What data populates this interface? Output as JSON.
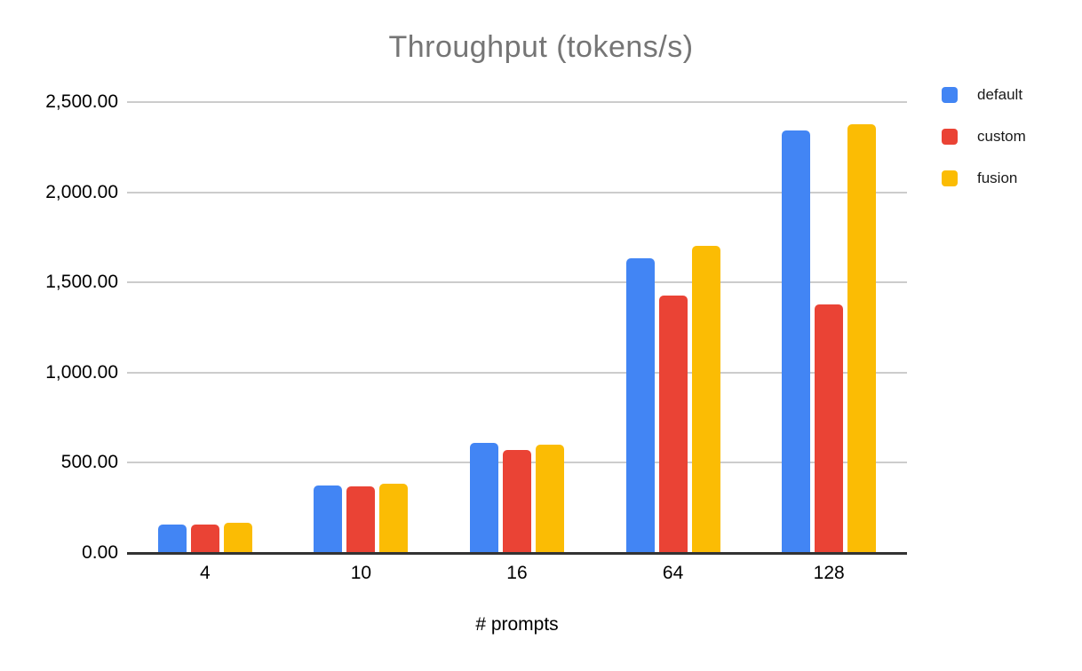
{
  "page": {
    "background": "#ffffff"
  },
  "chart_data": {
    "type": "bar",
    "title": "Throughput (tokens/s)",
    "xlabel": "# prompts",
    "ylabel": "",
    "categories": [
      "4",
      "10",
      "16",
      "64",
      "128"
    ],
    "series": [
      {
        "name": "default",
        "color": "#4285F4",
        "values": [
          158,
          372,
          610,
          1632,
          2345
        ]
      },
      {
        "name": "custom",
        "color": "#EA4335",
        "values": [
          156,
          370,
          572,
          1428,
          1376
        ]
      },
      {
        "name": "fusion",
        "color": "#FBBC04",
        "values": [
          168,
          386,
          601,
          1705,
          2376
        ]
      }
    ],
    "ylim": [
      0,
      2500
    ],
    "ytick_step": 500,
    "ytick_labels": [
      "0.00",
      "500.00",
      "1,000.00",
      "1,500.00",
      "2,000.00",
      "2,500.00"
    ],
    "grid": true,
    "legend_position": "top-right"
  },
  "colors": {
    "title_text": "#757575",
    "axis_text": "#000000",
    "legend_text": "#1a1a1a",
    "gridline": "#cccccc",
    "axis_line": "#333333"
  }
}
